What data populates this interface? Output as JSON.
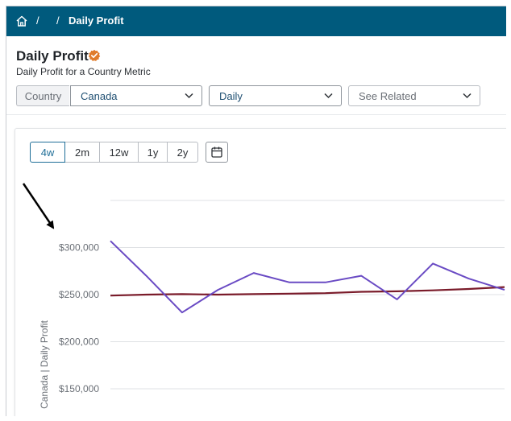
{
  "header": {
    "breadcrumb_sep_1": "/",
    "breadcrumb_sep_2": "/",
    "breadcrumb_current": "Daily Profit"
  },
  "page": {
    "title": "Daily Profit",
    "subtitle": "Daily Profit for a Country Metric"
  },
  "filters": {
    "country_label": "Country",
    "country_value": "Canada",
    "granularity_value": "Daily",
    "related_placeholder": "See Related"
  },
  "ranges": [
    {
      "label": "4w",
      "selected": true
    },
    {
      "label": "2m",
      "selected": false
    },
    {
      "label": "12w",
      "selected": false
    },
    {
      "label": "1y",
      "selected": false
    },
    {
      "label": "2y",
      "selected": false
    }
  ],
  "colors": {
    "header_bg": "#005a7d",
    "accent": "#1f6e98",
    "verified": "#e07b2a",
    "series_actual": "#6a4bc4",
    "series_trend": "#7a1b2a"
  },
  "chart_data": {
    "type": "line",
    "ylabel": "Canada | Daily Profit",
    "yticks": [
      "$300,000",
      "$250,000",
      "$200,000",
      "$150,000"
    ],
    "ylim": [
      150000,
      350000
    ],
    "grid": true,
    "x": [
      0,
      1,
      2,
      3,
      4,
      5,
      6,
      7,
      8,
      9,
      10,
      11
    ],
    "series": [
      {
        "values": [
          307000,
          270000,
          231000,
          255000,
          273000,
          263000,
          263000,
          270000,
          245000,
          283000,
          267000,
          255000
        ]
      },
      {
        "values": [
          249000,
          250000,
          250500,
          250000,
          250500,
          251000,
          251500,
          253000,
          253500,
          254500,
          256000,
          258000
        ]
      }
    ]
  }
}
